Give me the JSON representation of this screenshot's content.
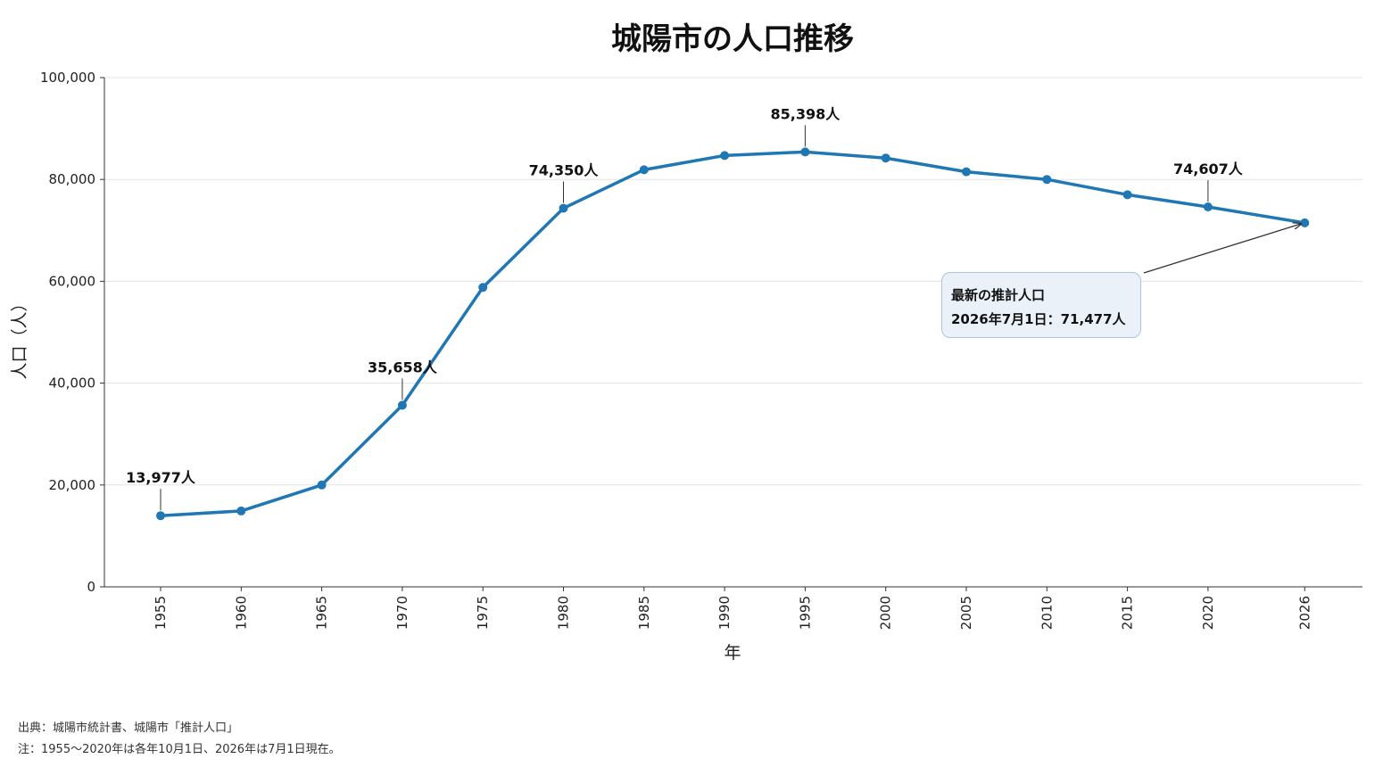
{
  "chart_data": {
    "type": "line",
    "title": "城陽市の人口推移",
    "xlabel": "年",
    "ylabel": "人口（人）",
    "ylim": [
      0,
      100000
    ],
    "yticks": [
      0,
      20000,
      40000,
      60000,
      80000,
      100000
    ],
    "ytick_labels": [
      "0",
      "20,000",
      "40,000",
      "60,000",
      "80,000",
      "100,000"
    ],
    "x": [
      "1955",
      "1960",
      "1965",
      "1970",
      "1975",
      "1980",
      "1985",
      "1990",
      "1995",
      "2000",
      "2005",
      "2010",
      "2015",
      "2020",
      "2026"
    ],
    "series": [
      {
        "color": "#1f77b4",
        "values": [
          13977,
          14900,
          20000,
          35658,
          58800,
          74350,
          81900,
          84700,
          85398,
          84200,
          81500,
          80000,
          77000,
          74607,
          71477
        ]
      }
    ],
    "grid": "horizontal",
    "data_labels": [
      {
        "x": "1955",
        "value": 13977,
        "text": "13,977人"
      },
      {
        "x": "1970",
        "value": 35658,
        "text": "35,658人"
      },
      {
        "x": "1980",
        "value": 74350,
        "text": "74,350人"
      },
      {
        "x": "1995",
        "value": 85398,
        "text": "85,398人"
      },
      {
        "x": "2020",
        "value": 74607,
        "text": "74,607人"
      }
    ],
    "annotation": {
      "x": "2026",
      "value": 71477,
      "line1": "最新の推計人口",
      "line2": "2026年7月1日：71,477人"
    }
  },
  "footnotes": {
    "source": "出典：城陽市統計書、城陽市「推計人口」",
    "note": "注：1955〜2020年は各年10月1日、2026年は7月1日現在。"
  }
}
